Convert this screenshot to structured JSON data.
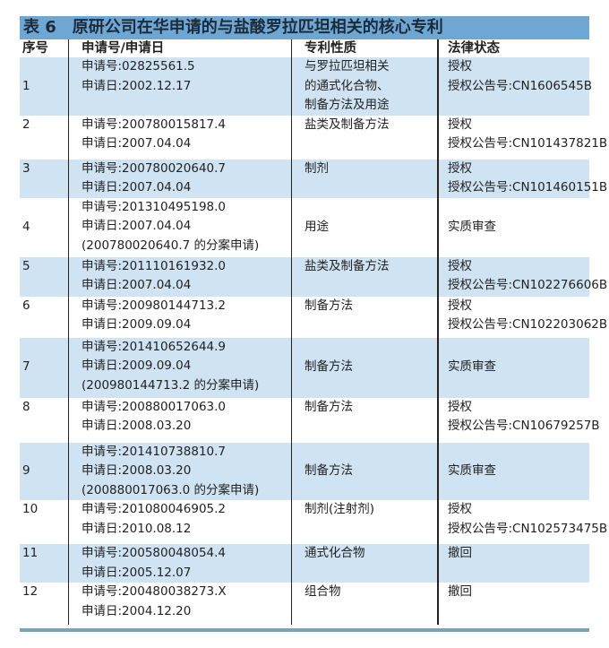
{
  "title": {
    "label": "表 6",
    "text": "原研公司在华申请的与盐酸罗拉匹坦相关的核心专利"
  },
  "headers": [
    "序号",
    "申请号/申请日",
    "专利性质",
    "法律状态"
  ],
  "colors": {
    "title_bar": "#6fa7d4",
    "row_shade": "#cfe3f2",
    "bottom_rule": "#7ba2ba"
  },
  "rows": [
    {
      "no": "1",
      "app": [
        "申请号:02825561.5",
        "申请日:2002.12.17"
      ],
      "nature": [
        "与罗拉匹坦相关",
        "的通式化合物、",
        "制备方法及用途"
      ],
      "status": [
        "授权",
        "授权公告号:CN1606545B"
      ]
    },
    {
      "no": "2",
      "app": [
        "申请号:200780015817.4",
        "申请日:2007.04.04"
      ],
      "nature": [
        "盐类及制备方法"
      ],
      "status": [
        "授权",
        "授权公告号:CN101437821B"
      ]
    },
    {
      "no": "3",
      "app": [
        "申请号:200780020640.7",
        "申请日:2007.04.04"
      ],
      "nature": [
        "制剂"
      ],
      "status": [
        "授权",
        "授权公告号:CN101460151B"
      ]
    },
    {
      "no": "4",
      "app": [
        "申请号:201310495198.0",
        "申请日:2007.04.04",
        "(200780020640.7 的分案申请)"
      ],
      "nature": [
        "用途"
      ],
      "status": [
        "实质审查"
      ]
    },
    {
      "no": "5",
      "app": [
        "申请号:201110161932.0",
        "申请日:2007.04.04"
      ],
      "nature": [
        "盐类及制备方法"
      ],
      "status": [
        "授权",
        "授权公告号:CN102276606B"
      ]
    },
    {
      "no": "6",
      "app": [
        "申请号:200980144713.2",
        "申请日:2009.09.04"
      ],
      "nature": [
        "制备方法"
      ],
      "status": [
        "授权",
        "授权公告号:CN102203062B"
      ]
    },
    {
      "no": "7",
      "app": [
        "申请号:201410652644.9",
        "申请日:2009.09.04",
        "(200980144713.2 的分案申请)"
      ],
      "nature": [
        "制备方法"
      ],
      "status": [
        "实质审查"
      ]
    },
    {
      "no": "8",
      "app": [
        "申请号:200880017063.0",
        "申请日:2008.03.20"
      ],
      "nature": [
        "制备方法"
      ],
      "status": [
        "授权",
        "授权公告号:CN10679257B"
      ]
    },
    {
      "no": "9",
      "app": [
        "申请号:201410738810.7",
        "申请日:2008.03.20",
        "(200880017063.0 的分案申请)"
      ],
      "nature": [
        "制备方法"
      ],
      "status": [
        "实质审查"
      ]
    },
    {
      "no": "10",
      "app": [
        "申请号:201080046905.2",
        "申请日:2010.08.12"
      ],
      "nature": [
        "制剂(注射剂)"
      ],
      "status": [
        "授权",
        "授权公告号:CN102573475B"
      ]
    },
    {
      "no": "11",
      "app": [
        "申请号:200580048054.4",
        "申请日:2005.12.07"
      ],
      "nature": [
        "通式化合物"
      ],
      "status": [
        "撤回"
      ]
    },
    {
      "no": "12",
      "app": [
        "申请号:200480038273.X",
        "申请日:2004.12.20"
      ],
      "nature": [
        "组合物"
      ],
      "status": [
        "撤回"
      ]
    }
  ]
}
